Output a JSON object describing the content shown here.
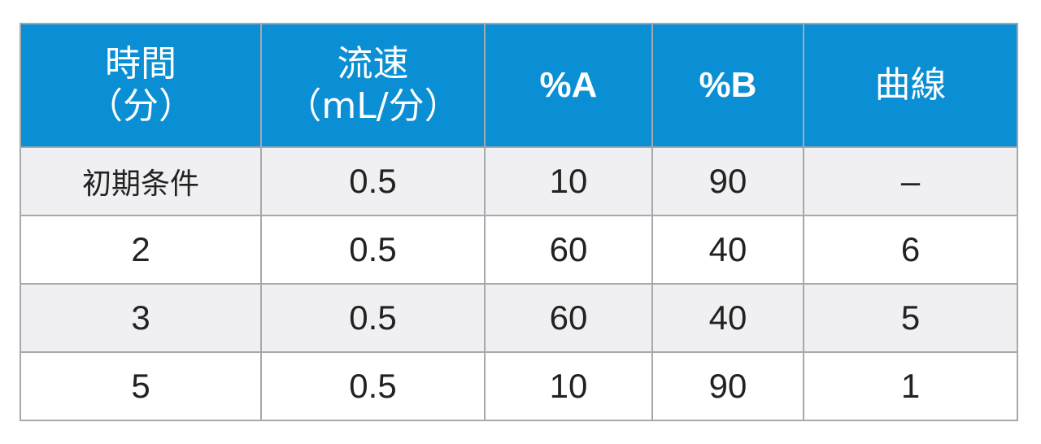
{
  "table": {
    "headers": [
      {
        "line1": "時間",
        "line2": "（分）"
      },
      {
        "line1": "流速",
        "line2": "（mL/分）"
      },
      {
        "line1": "%A",
        "line2": ""
      },
      {
        "line1": "%B",
        "line2": ""
      },
      {
        "line1": "曲線",
        "line2": ""
      }
    ],
    "rows": [
      [
        "初期条件",
        "0.5",
        "10",
        "90",
        "–"
      ],
      [
        "2",
        "0.5",
        "60",
        "40",
        "6"
      ],
      [
        "3",
        "0.5",
        "60",
        "40",
        "5"
      ],
      [
        "5",
        "0.5",
        "10",
        "90",
        "1"
      ]
    ]
  },
  "colors": {
    "header_bg": "#0b8fd4",
    "header_text": "#ffffff",
    "row_shade": "#f0f0f2",
    "border": "#a6a8ab"
  }
}
